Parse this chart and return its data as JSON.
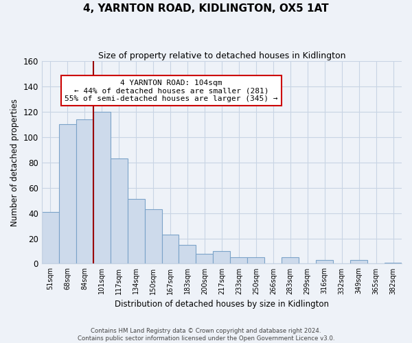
{
  "title": "4, YARNTON ROAD, KIDLINGTON, OX5 1AT",
  "subtitle": "Size of property relative to detached houses in Kidlington",
  "xlabel": "Distribution of detached houses by size in Kidlington",
  "ylabel": "Number of detached properties",
  "categories": [
    "51sqm",
    "68sqm",
    "84sqm",
    "101sqm",
    "117sqm",
    "134sqm",
    "150sqm",
    "167sqm",
    "183sqm",
    "200sqm",
    "217sqm",
    "233sqm",
    "250sqm",
    "266sqm",
    "283sqm",
    "299sqm",
    "316sqm",
    "332sqm",
    "349sqm",
    "365sqm",
    "382sqm"
  ],
  "values": [
    41,
    110,
    114,
    120,
    83,
    51,
    43,
    23,
    15,
    8,
    10,
    5,
    5,
    0,
    5,
    0,
    3,
    0,
    3,
    0,
    1
  ],
  "bar_color": "#cddaeb",
  "bar_edge_color": "#7ba3c8",
  "vline_x_index": 3,
  "vline_color": "#990000",
  "annotation_lines": [
    "4 YARNTON ROAD: 104sqm",
    "← 44% of detached houses are smaller (281)",
    "55% of semi-detached houses are larger (345) →"
  ],
  "annotation_box_color": "#ffffff",
  "annotation_box_edge_color": "#cc0000",
  "ylim": [
    0,
    160
  ],
  "yticks": [
    0,
    20,
    40,
    60,
    80,
    100,
    120,
    140,
    160
  ],
  "grid_color": "#c8d4e4",
  "background_color": "#eef2f8",
  "footer_line1": "Contains HM Land Registry data © Crown copyright and database right 2024.",
  "footer_line2": "Contains public sector information licensed under the Open Government Licence v3.0."
}
